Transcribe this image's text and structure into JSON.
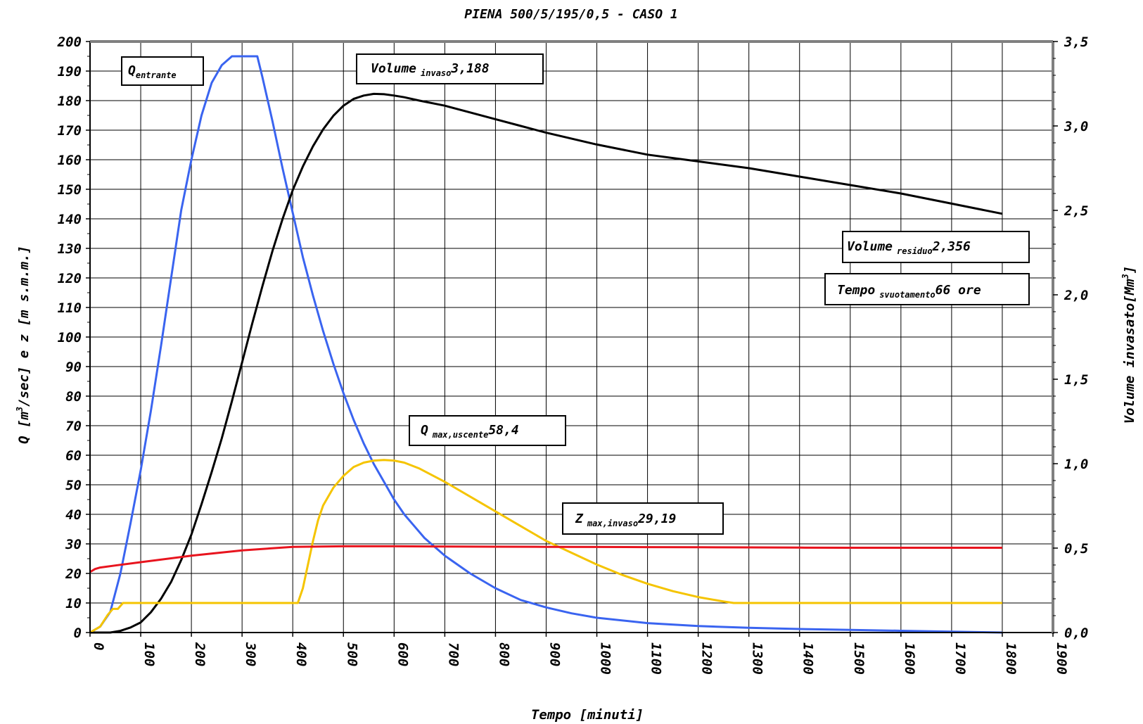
{
  "chart_data": {
    "type": "line",
    "title": "PIENA 500/5/195/0,5 - CASO 1",
    "xlabel": "Tempo [minuti]",
    "ylabel_left": {
      "base": "Q [m",
      "sup": "3",
      "rest": "/sec] e z [m s.m.m.]"
    },
    "ylabel_right": {
      "base": "Volume invasato[Mm",
      "sup": "3",
      "rest": "]"
    },
    "xlim": [
      0,
      1900
    ],
    "ylim_left": [
      0,
      200
    ],
    "ylim_right": [
      0,
      3.5
    ],
    "x_ticks": [
      "0",
      "100",
      "200",
      "300",
      "400",
      "500",
      "600",
      "700",
      "800",
      "900",
      "1000",
      "1100",
      "1200",
      "1300",
      "1400",
      "1500",
      "1600",
      "1700",
      "1800",
      "1900"
    ],
    "y_left_ticks": [
      "0",
      "10",
      "20",
      "30",
      "40",
      "50",
      "60",
      "70",
      "80",
      "90",
      "100",
      "110",
      "120",
      "130",
      "140",
      "150",
      "160",
      "170",
      "180",
      "190",
      "200"
    ],
    "y_right_ticks": [
      "0,0",
      "0,5",
      "1,0",
      "1,5",
      "2,0",
      "2,5",
      "3,0",
      "3,5"
    ],
    "grid": true,
    "series": [
      {
        "color": "#3a64f0",
        "axis": "left",
        "x": [
          0,
          20,
          40,
          60,
          80,
          100,
          120,
          140,
          160,
          180,
          200,
          220,
          240,
          260,
          280,
          300,
          310,
          320,
          330,
          340,
          360,
          380,
          400,
          420,
          440,
          460,
          480,
          500,
          520,
          540,
          560,
          580,
          600,
          620,
          640,
          660,
          680,
          700,
          750,
          800,
          850,
          900,
          950,
          1000,
          1100,
          1200,
          1300,
          1400,
          1500,
          1600,
          1700,
          1800
        ],
        "y": [
          0,
          2,
          7,
          20,
          37,
          55,
          75,
          97,
          120,
          143,
          160,
          175,
          186,
          192,
          195,
          195,
          195,
          195,
          195,
          188,
          173,
          157,
          142,
          127,
          114,
          102,
          91,
          81,
          72,
          64,
          57,
          51,
          45,
          40,
          36,
          32,
          29,
          26,
          20,
          15,
          11,
          8.5,
          6.5,
          5,
          3.2,
          2.2,
          1.6,
          1.2,
          0.9,
          0.6,
          0.3,
          0
        ]
      },
      {
        "color": "#000000",
        "axis": "right",
        "x": [
          0,
          40,
          60,
          80,
          100,
          120,
          140,
          160,
          180,
          200,
          220,
          240,
          260,
          280,
          300,
          320,
          340,
          360,
          380,
          400,
          420,
          440,
          460,
          480,
          500,
          520,
          540,
          560,
          580,
          600,
          620,
          650,
          700,
          750,
          800,
          850,
          900,
          1000,
          1100,
          1200,
          1300,
          1400,
          1500,
          1600,
          1700,
          1800
        ],
        "y": [
          0,
          0,
          0.01,
          0.03,
          0.06,
          0.12,
          0.2,
          0.3,
          0.43,
          0.58,
          0.76,
          0.95,
          1.15,
          1.37,
          1.6,
          1.83,
          2.05,
          2.26,
          2.45,
          2.62,
          2.76,
          2.88,
          2.98,
          3.06,
          3.12,
          3.16,
          3.18,
          3.19,
          3.188,
          3.18,
          3.17,
          3.15,
          3.12,
          3.08,
          3.04,
          3.0,
          2.96,
          2.89,
          2.83,
          2.79,
          2.75,
          2.7,
          2.65,
          2.6,
          2.54,
          2.48
        ]
      },
      {
        "color": "#f5c400",
        "axis": "left",
        "x": [
          0,
          20,
          35,
          45,
          55,
          65,
          70,
          400,
          410,
          420,
          430,
          440,
          450,
          460,
          480,
          500,
          520,
          540,
          560,
          580,
          600,
          620,
          650,
          700,
          750,
          800,
          850,
          900,
          950,
          1000,
          1050,
          1100,
          1150,
          1200,
          1250,
          1270,
          1300,
          1400,
          1500,
          1600,
          1700,
          1800
        ],
        "y": [
          0,
          2,
          6,
          8,
          8,
          10,
          10,
          10,
          10,
          15,
          23,
          31,
          38,
          43,
          49,
          53,
          56,
          57.5,
          58.2,
          58.4,
          58.2,
          57.5,
          55.5,
          51,
          46,
          41,
          36,
          31,
          27,
          23,
          19.5,
          16.5,
          14,
          12,
          10.5,
          10,
          10,
          10,
          10,
          10,
          10,
          10
        ]
      },
      {
        "color": "#e8141e",
        "axis": "left",
        "x": [
          0,
          10,
          20,
          50,
          100,
          200,
          300,
          400,
          500,
          600,
          700,
          800,
          900,
          1000,
          1100,
          1200,
          1300,
          1400,
          1500,
          1600,
          1700,
          1800
        ],
        "y": [
          20.5,
          21.5,
          22,
          22.7,
          23.8,
          26,
          27.8,
          29,
          29.2,
          29.19,
          29.1,
          29.05,
          29,
          28.95,
          28.9,
          28.85,
          28.8,
          28.75,
          28.7,
          28.7,
          28.7,
          28.7
        ]
      }
    ],
    "annotations": [
      {
        "main": "Q",
        "sub": "entrante",
        "value": ""
      },
      {
        "main": "Volume",
        "sub": "invaso",
        "value": "3,188"
      },
      {
        "main": "Volume",
        "sub": "residuo",
        "value": "2,356"
      },
      {
        "main": "Tempo",
        "sub": "svuotamento",
        "value": "66 ore"
      },
      {
        "main": "Q",
        "sub": "max,uscente",
        "value": "58,4"
      },
      {
        "main": "Z",
        "sub": "max,invaso",
        "value": "29,19"
      }
    ]
  }
}
